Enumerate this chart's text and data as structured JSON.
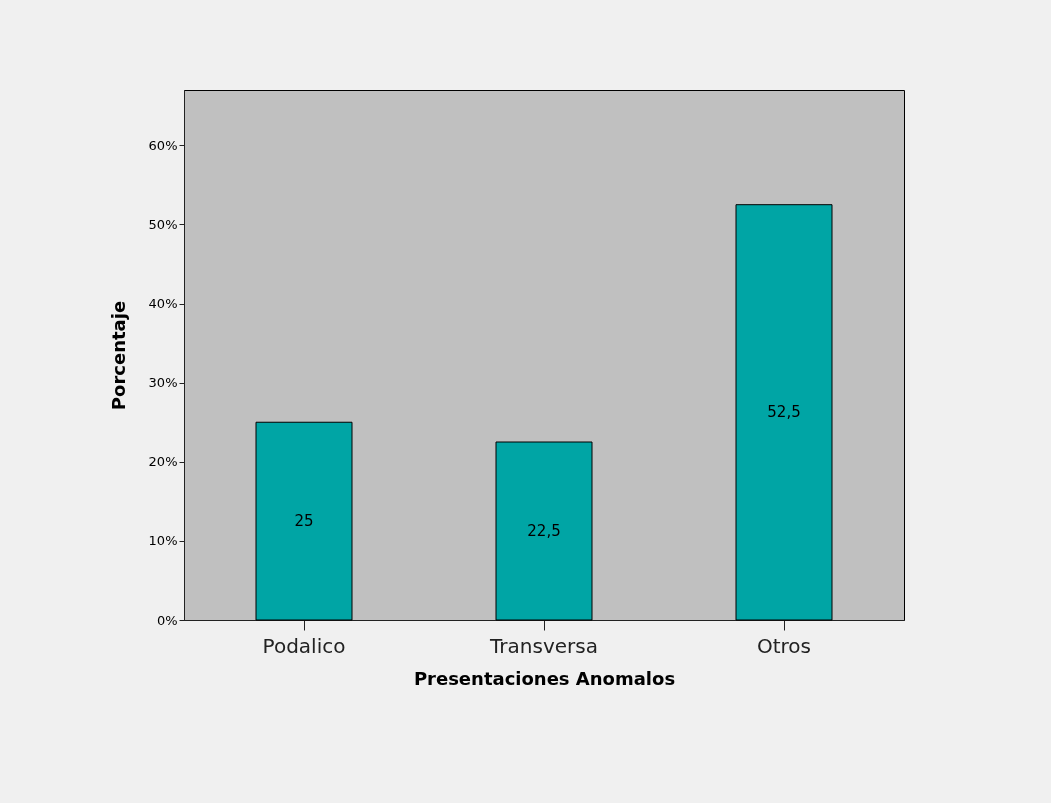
{
  "chart_data": {
    "type": "bar",
    "xlabel": "Presentaciones Anomalos",
    "ylabel": "Porcentaje",
    "categories": [
      "Podalico",
      "Transversa",
      "Otros"
    ],
    "values": [
      25,
      22.5,
      52.5
    ],
    "value_labels": [
      "25",
      "22,5",
      "52,5"
    ],
    "color": "#00a5a5",
    "ylim": [
      0,
      67
    ],
    "yticks": [
      {
        "value": 0,
        "label": "0%"
      },
      {
        "value": 10,
        "label": "10%"
      },
      {
        "value": 20,
        "label": "20%"
      },
      {
        "value": 30,
        "label": "30%"
      },
      {
        "value": 40,
        "label": "40%"
      },
      {
        "value": 50,
        "label": "50%"
      },
      {
        "value": 60,
        "label": "60%"
      }
    ],
    "grid": false
  }
}
